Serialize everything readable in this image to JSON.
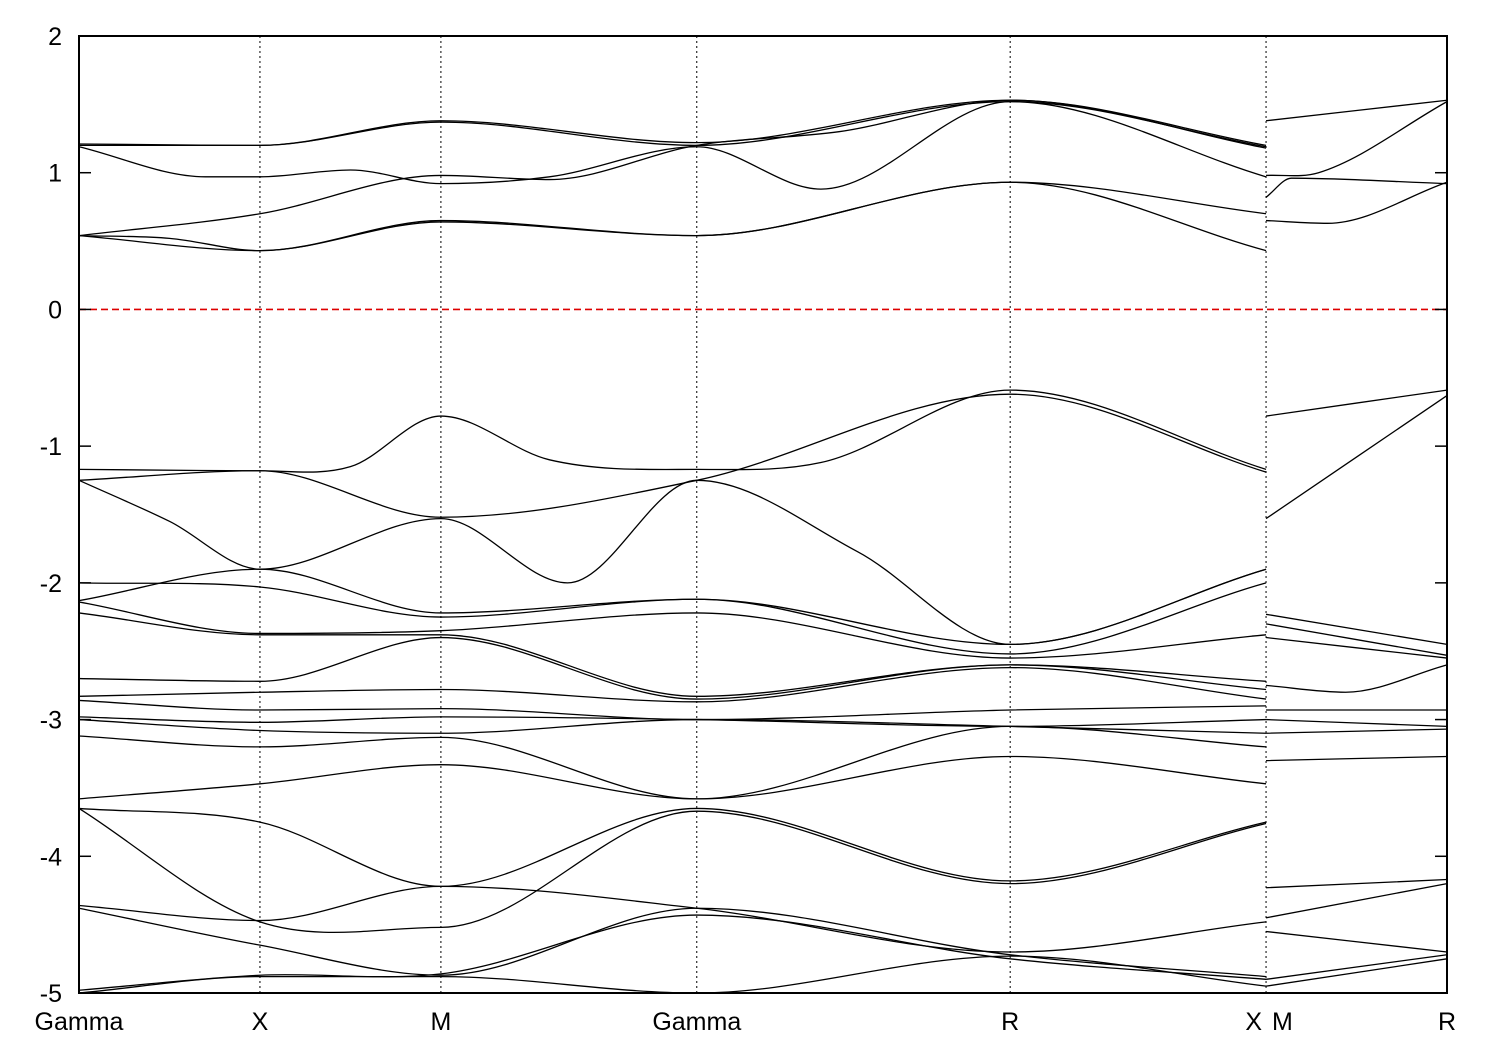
{
  "chart_data": {
    "type": "line",
    "title": "",
    "xlabel": "",
    "ylabel": "",
    "ylim": [
      -5,
      2
    ],
    "yticks": [
      2,
      1,
      0,
      -1,
      -2,
      -3,
      -4,
      -5
    ],
    "kpoints": [
      {
        "label": "Gamma",
        "pos": 0.0
      },
      {
        "label": "X",
        "pos": 1.0
      },
      {
        "label": "M",
        "pos": 2.0
      },
      {
        "label": "Gamma",
        "pos": 3.414
      },
      {
        "label": "R",
        "pos": 5.146
      },
      {
        "label": "X",
        "pos": 6.56
      },
      {
        "label": "M",
        "pos": 6.56
      },
      {
        "label": "R",
        "pos": 7.56
      }
    ],
    "xrange": [
      0,
      7.56
    ],
    "grid_x": "dotted at high-symmetry points",
    "fermi_level": {
      "value": 0,
      "color": "#dd0000",
      "style": "dashed"
    },
    "band_color": "#000000",
    "series": [
      {
        "x": [
          0,
          1.0,
          2.0,
          3.414,
          5.146,
          6.56
        ],
        "values": [
          1.21,
          1.2,
          1.38,
          1.22,
          1.53,
          1.2
        ]
      },
      {
        "x": [
          0,
          1.0,
          2.0,
          3.414,
          5.146,
          6.56
        ],
        "values": [
          1.2,
          1.2,
          1.37,
          1.2,
          1.52,
          1.19
        ]
      },
      {
        "x": [
          0,
          0.7,
          1.0,
          1.5,
          2.0,
          2.6,
          3.414,
          4.1,
          5.146,
          6.56
        ],
        "values": [
          1.19,
          0.97,
          0.97,
          1.02,
          0.92,
          0.97,
          1.19,
          0.88,
          1.52,
          0.97
        ]
      },
      {
        "x": [
          0,
          1.0,
          2.0,
          2.6,
          3.414,
          4.2,
          5.146,
          6.56
        ],
        "values": [
          0.54,
          0.7,
          0.98,
          0.95,
          1.2,
          1.3,
          1.53,
          1.18
        ]
      },
      {
        "x": [
          0,
          1.0,
          2.0,
          3.414,
          5.146,
          6.56
        ],
        "values": [
          0.54,
          0.43,
          0.65,
          0.54,
          0.93,
          0.7
        ]
      },
      {
        "x": [
          0,
          0.5,
          1.0,
          2.0,
          3.414,
          5.146,
          6.56
        ],
        "values": [
          0.54,
          0.52,
          0.43,
          0.64,
          0.54,
          0.93,
          0.43
        ]
      },
      {
        "x": [
          0,
          1.0,
          1.5,
          2.0,
          2.6,
          3.414,
          4.1,
          5.146,
          6.56
        ],
        "values": [
          -1.17,
          -1.18,
          -1.15,
          -0.78,
          -1.1,
          -1.17,
          -1.12,
          -0.59,
          -1.17
        ]
      },
      {
        "x": [
          0,
          1.0,
          2.0,
          3.414,
          5.146,
          6.56
        ],
        "values": [
          -1.25,
          -1.18,
          -1.52,
          -1.25,
          -0.62,
          -1.19
        ]
      },
      {
        "x": [
          0,
          0.5,
          1.0,
          2.0,
          2.7,
          3.414,
          4.3,
          5.146,
          6.56
        ],
        "values": [
          -1.25,
          -1.55,
          -1.9,
          -1.53,
          -2.0,
          -1.25,
          -1.77,
          -2.45,
          -1.9
        ]
      },
      {
        "x": [
          0,
          1.0,
          2.0,
          3.414,
          5.146,
          6.56
        ],
        "values": [
          -2.0,
          -2.03,
          -2.25,
          -2.12,
          -2.45,
          -1.9
        ]
      },
      {
        "x": [
          0,
          1.0,
          2.0,
          3.414,
          5.146,
          6.56
        ],
        "values": [
          -2.13,
          -1.9,
          -2.22,
          -2.12,
          -2.52,
          -2.0
        ]
      },
      {
        "x": [
          0,
          1.0,
          2.0,
          3.414,
          5.146,
          6.56
        ],
        "values": [
          -2.14,
          -2.37,
          -2.35,
          -2.22,
          -2.55,
          -2.38
        ]
      },
      {
        "x": [
          0,
          1.0,
          2.0,
          3.414,
          5.146,
          6.56
        ],
        "values": [
          -2.22,
          -2.38,
          -2.38,
          -2.83,
          -2.6,
          -2.72
        ]
      },
      {
        "x": [
          0,
          1.0,
          2.0,
          3.414,
          5.146,
          6.56
        ],
        "values": [
          -2.7,
          -2.72,
          -2.4,
          -2.85,
          -2.6,
          -2.78
        ]
      },
      {
        "x": [
          0,
          1.0,
          2.0,
          3.414,
          5.146,
          6.56
        ],
        "values": [
          -2.83,
          -2.8,
          -2.78,
          -2.87,
          -2.62,
          -2.85
        ]
      },
      {
        "x": [
          0,
          1.0,
          2.0,
          3.414,
          5.146,
          6.56
        ],
        "values": [
          -2.86,
          -2.93,
          -2.92,
          -3.0,
          -2.93,
          -2.9
        ]
      },
      {
        "x": [
          0,
          1.0,
          2.0,
          3.414,
          5.146,
          6.56
        ],
        "values": [
          -2.98,
          -3.02,
          -2.98,
          -3.0,
          -3.05,
          -3.0
        ]
      },
      {
        "x": [
          0,
          1.0,
          2.0,
          3.414,
          5.146,
          6.56
        ],
        "values": [
          -3.0,
          -3.08,
          -3.1,
          -3.0,
          -3.05,
          -3.1
        ]
      },
      {
        "x": [
          0,
          1.0,
          2.0,
          3.414,
          5.146,
          6.56
        ],
        "values": [
          -3.12,
          -3.2,
          -3.13,
          -3.58,
          -3.05,
          -3.2
        ]
      },
      {
        "x": [
          0,
          1.0,
          2.0,
          3.414,
          5.146,
          6.56
        ],
        "values": [
          -3.58,
          -3.47,
          -3.33,
          -3.58,
          -3.27,
          -3.47
        ]
      },
      {
        "x": [
          0,
          1.0,
          2.0,
          3.414,
          5.146,
          6.56
        ],
        "values": [
          -3.65,
          -3.75,
          -4.22,
          -3.65,
          -4.18,
          -3.75
        ]
      },
      {
        "x": [
          0,
          1.0,
          2.0,
          3.414,
          5.146,
          6.56
        ],
        "values": [
          -3.65,
          -4.48,
          -4.52,
          -3.67,
          -4.2,
          -3.76
        ]
      },
      {
        "x": [
          0,
          1.0,
          2.0,
          3.414,
          5.146,
          6.56
        ],
        "values": [
          -4.36,
          -4.47,
          -4.22,
          -4.38,
          -4.7,
          -4.48
        ]
      },
      {
        "x": [
          0,
          1.0,
          2.0,
          3.414,
          5.146,
          6.56
        ],
        "values": [
          -4.38,
          -4.65,
          -4.87,
          -4.38,
          -4.72,
          -4.88
        ]
      },
      {
        "x": [
          0,
          1.0,
          2.0,
          3.414,
          5.146,
          6.56
        ],
        "values": [
          -4.98,
          -4.87,
          -4.86,
          -4.43,
          -4.75,
          -4.9
        ]
      },
      {
        "x": [
          0,
          1.0,
          2.0,
          3.414,
          5.146,
          6.56
        ],
        "values": [
          -5.0,
          -4.88,
          -4.88,
          -5.0,
          -4.73,
          -4.95
        ]
      },
      {
        "x": [
          6.56,
          7.56
        ],
        "values": [
          1.38,
          1.53
        ]
      },
      {
        "x": [
          6.56,
          6.85,
          7.56
        ],
        "values": [
          0.98,
          1.0,
          1.52
        ]
      },
      {
        "x": [
          6.56,
          6.7,
          7.56
        ],
        "values": [
          0.82,
          0.96,
          0.92
        ]
      },
      {
        "x": [
          6.56,
          6.9,
          7.56
        ],
        "values": [
          0.65,
          0.63,
          0.93
        ]
      },
      {
        "x": [
          6.56,
          7.56
        ],
        "values": [
          -0.78,
          -0.59
        ]
      },
      {
        "x": [
          6.56,
          7.56
        ],
        "values": [
          -1.53,
          -0.63
        ]
      },
      {
        "x": [
          6.56,
          7.56
        ],
        "values": [
          -2.23,
          -2.45
        ]
      },
      {
        "x": [
          6.56,
          7.56
        ],
        "values": [
          -2.3,
          -2.53
        ]
      },
      {
        "x": [
          6.56,
          7.56
        ],
        "values": [
          -2.4,
          -2.55
        ]
      },
      {
        "x": [
          6.56,
          7.0,
          7.56
        ],
        "values": [
          -2.75,
          -2.8,
          -2.6
        ]
      },
      {
        "x": [
          6.56,
          7.56
        ],
        "values": [
          -2.93,
          -2.93
        ]
      },
      {
        "x": [
          6.56,
          7.56
        ],
        "values": [
          -3.0,
          -3.05
        ]
      },
      {
        "x": [
          6.56,
          7.56
        ],
        "values": [
          -3.1,
          -3.07
        ]
      },
      {
        "x": [
          6.56,
          7.56
        ],
        "values": [
          -3.3,
          -3.27
        ]
      },
      {
        "x": [
          6.56,
          7.56
        ],
        "values": [
          -4.23,
          -4.17
        ]
      },
      {
        "x": [
          6.56,
          7.56
        ],
        "values": [
          -4.45,
          -4.2
        ]
      },
      {
        "x": [
          6.56,
          7.56
        ],
        "values": [
          -4.55,
          -4.7
        ]
      },
      {
        "x": [
          6.56,
          7.56
        ],
        "values": [
          -4.9,
          -4.72
        ]
      },
      {
        "x": [
          6.56,
          7.56
        ],
        "values": [
          -4.95,
          -4.75
        ]
      }
    ]
  }
}
